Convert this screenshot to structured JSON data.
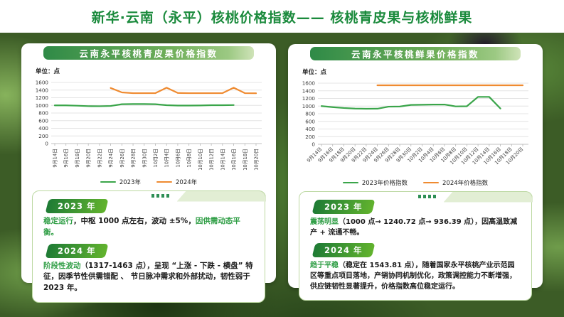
{
  "banner": {
    "title": "新华·云南（永平）核桃价格指数—— 核桃青皮果与核桃鲜果"
  },
  "colors": {
    "title_green": "#1a8a3c",
    "series_green": "#3aa54a",
    "series_orange": "#ef8b31",
    "header_gradient_start": "#2f8a47",
    "header_gradient_end": "#9cc983",
    "badge_gradient_start": "#1e7b35",
    "badge_gradient_end": "#62b32e",
    "highlight_text": "#2f9e45",
    "note_border": "#bcd8a2",
    "corner_tab_fill": "#e2eed4",
    "squares_fill": "#2e8f55"
  },
  "left_panel": {
    "header": "云南永平核桃青皮果价格指数",
    "unit_label": "单位：点",
    "decoration": "four-squares",
    "notes": [
      {
        "badge": "2023 年",
        "segments": [
          {
            "text": "稳定运行",
            "green": true
          },
          {
            "text": "，中枢 1000 点左右，波动 ±5%，",
            "green": false
          },
          {
            "text": "因供需动态平衡。",
            "green": true
          }
        ]
      },
      {
        "badge": "2024 年",
        "segments": [
          {
            "text": "阶段性波动",
            "green": true
          },
          {
            "text": "（1317-1463 点），呈现 “上涨 - 下跌 - 横盘” 特征，因季节性供需错配 、 节日脉冲需求和外部扰动，韧性弱于 2023 年。",
            "green": false
          }
        ]
      }
    ]
  },
  "right_panel": {
    "header": "云南永平核桃鲜果价格指数",
    "unit_label": "单位：点",
    "decoration": "four-squares",
    "notes": [
      {
        "badge": "2023 年",
        "segments": [
          {
            "text": "震荡明显",
            "green": true
          },
          {
            "text": "（1000 点→ 1240.72 点→ 936.39 点），因高温致减产 + 流通不畅。",
            "green": false
          }
        ]
      },
      {
        "badge": "2024 年",
        "segments": [
          {
            "text": "趋于平稳",
            "green": true
          },
          {
            "text": "（稳定在 1543.81 点），随着国家永平核桃产业示范园区等重点项目落地，产销协同机制优化，政策调控能力不断增强，供应链韧性显著提升，价格指数高位稳定运行。",
            "green": false
          }
        ]
      }
    ]
  },
  "chart_data": [
    {
      "type": "line",
      "title": "云南永平核桃青皮果价格指数",
      "unit": "点",
      "xlabel": "",
      "ylabel": "点",
      "ylim": [
        0,
        1600
      ],
      "yticks": [
        0,
        200,
        400,
        600,
        800,
        1000,
        1200,
        1400,
        1600
      ],
      "grid": true,
      "legend_position": "bottom",
      "x_label_rotation": -90,
      "categories": [
        "9月14日",
        "9月16日",
        "9月18日",
        "9月20日",
        "9月22日",
        "9月24日",
        "9月26日",
        "9月28日",
        "9月30日",
        "10月2日",
        "10月4日",
        "10月6日",
        "10月8日",
        "10月10日",
        "10月12日",
        "10月14日",
        "10月16日",
        "10月18日",
        "10月20日"
      ],
      "series": [
        {
          "name": "2023年",
          "color": "#3aa54a",
          "values": [
            1000,
            1000,
            992,
            980,
            978,
            985,
            1030,
            1035,
            1035,
            1030,
            1005,
            995,
            995,
            998,
            1005,
            1005,
            1008,
            null,
            null
          ]
        },
        {
          "name": "2024年",
          "color": "#ef8b31",
          "values": [
            null,
            null,
            null,
            null,
            null,
            1455,
            1340,
            1320,
            1320,
            1320,
            1463,
            1325,
            1320,
            1320,
            1320,
            1320,
            1463,
            1320,
            1317
          ]
        }
      ]
    },
    {
      "type": "line",
      "title": "云南永平核桃鲜果价格指数",
      "unit": "点",
      "xlabel": "",
      "ylabel": "点",
      "ylim": [
        0,
        1600
      ],
      "yticks": [
        0,
        200,
        400,
        600,
        800,
        1000,
        1200,
        1400,
        1600
      ],
      "grid": true,
      "legend_position": "bottom",
      "x_label_rotation": -45,
      "categories": [
        "9月14日",
        "9月16日",
        "9月18日",
        "9月20日",
        "9月22日",
        "9月24日",
        "9月26日",
        "9月28日",
        "9月30日",
        "10月2日",
        "10月4日",
        "10月6日",
        "10月8日",
        "10月10日",
        "10月12日",
        "10月14日",
        "10月16日",
        "10月18日",
        "10月20日"
      ],
      "series": [
        {
          "name": "2023年价格指数",
          "color": "#3aa54a",
          "values": [
            1000,
            972,
            950,
            935,
            930,
            932,
            985,
            988,
            1030,
            1035,
            1040,
            1040,
            992,
            995,
            1240.72,
            1240.72,
            936.39,
            null,
            null
          ]
        },
        {
          "name": "2024年价格指数",
          "color": "#ef8b31",
          "values": [
            null,
            null,
            null,
            null,
            null,
            1543.81,
            1543.81,
            1543.81,
            1543.81,
            1543.81,
            1543.81,
            1543.81,
            1543.81,
            1543.81,
            1543.81,
            1543.81,
            1543.81,
            1543.81,
            1543.81
          ]
        }
      ]
    }
  ]
}
